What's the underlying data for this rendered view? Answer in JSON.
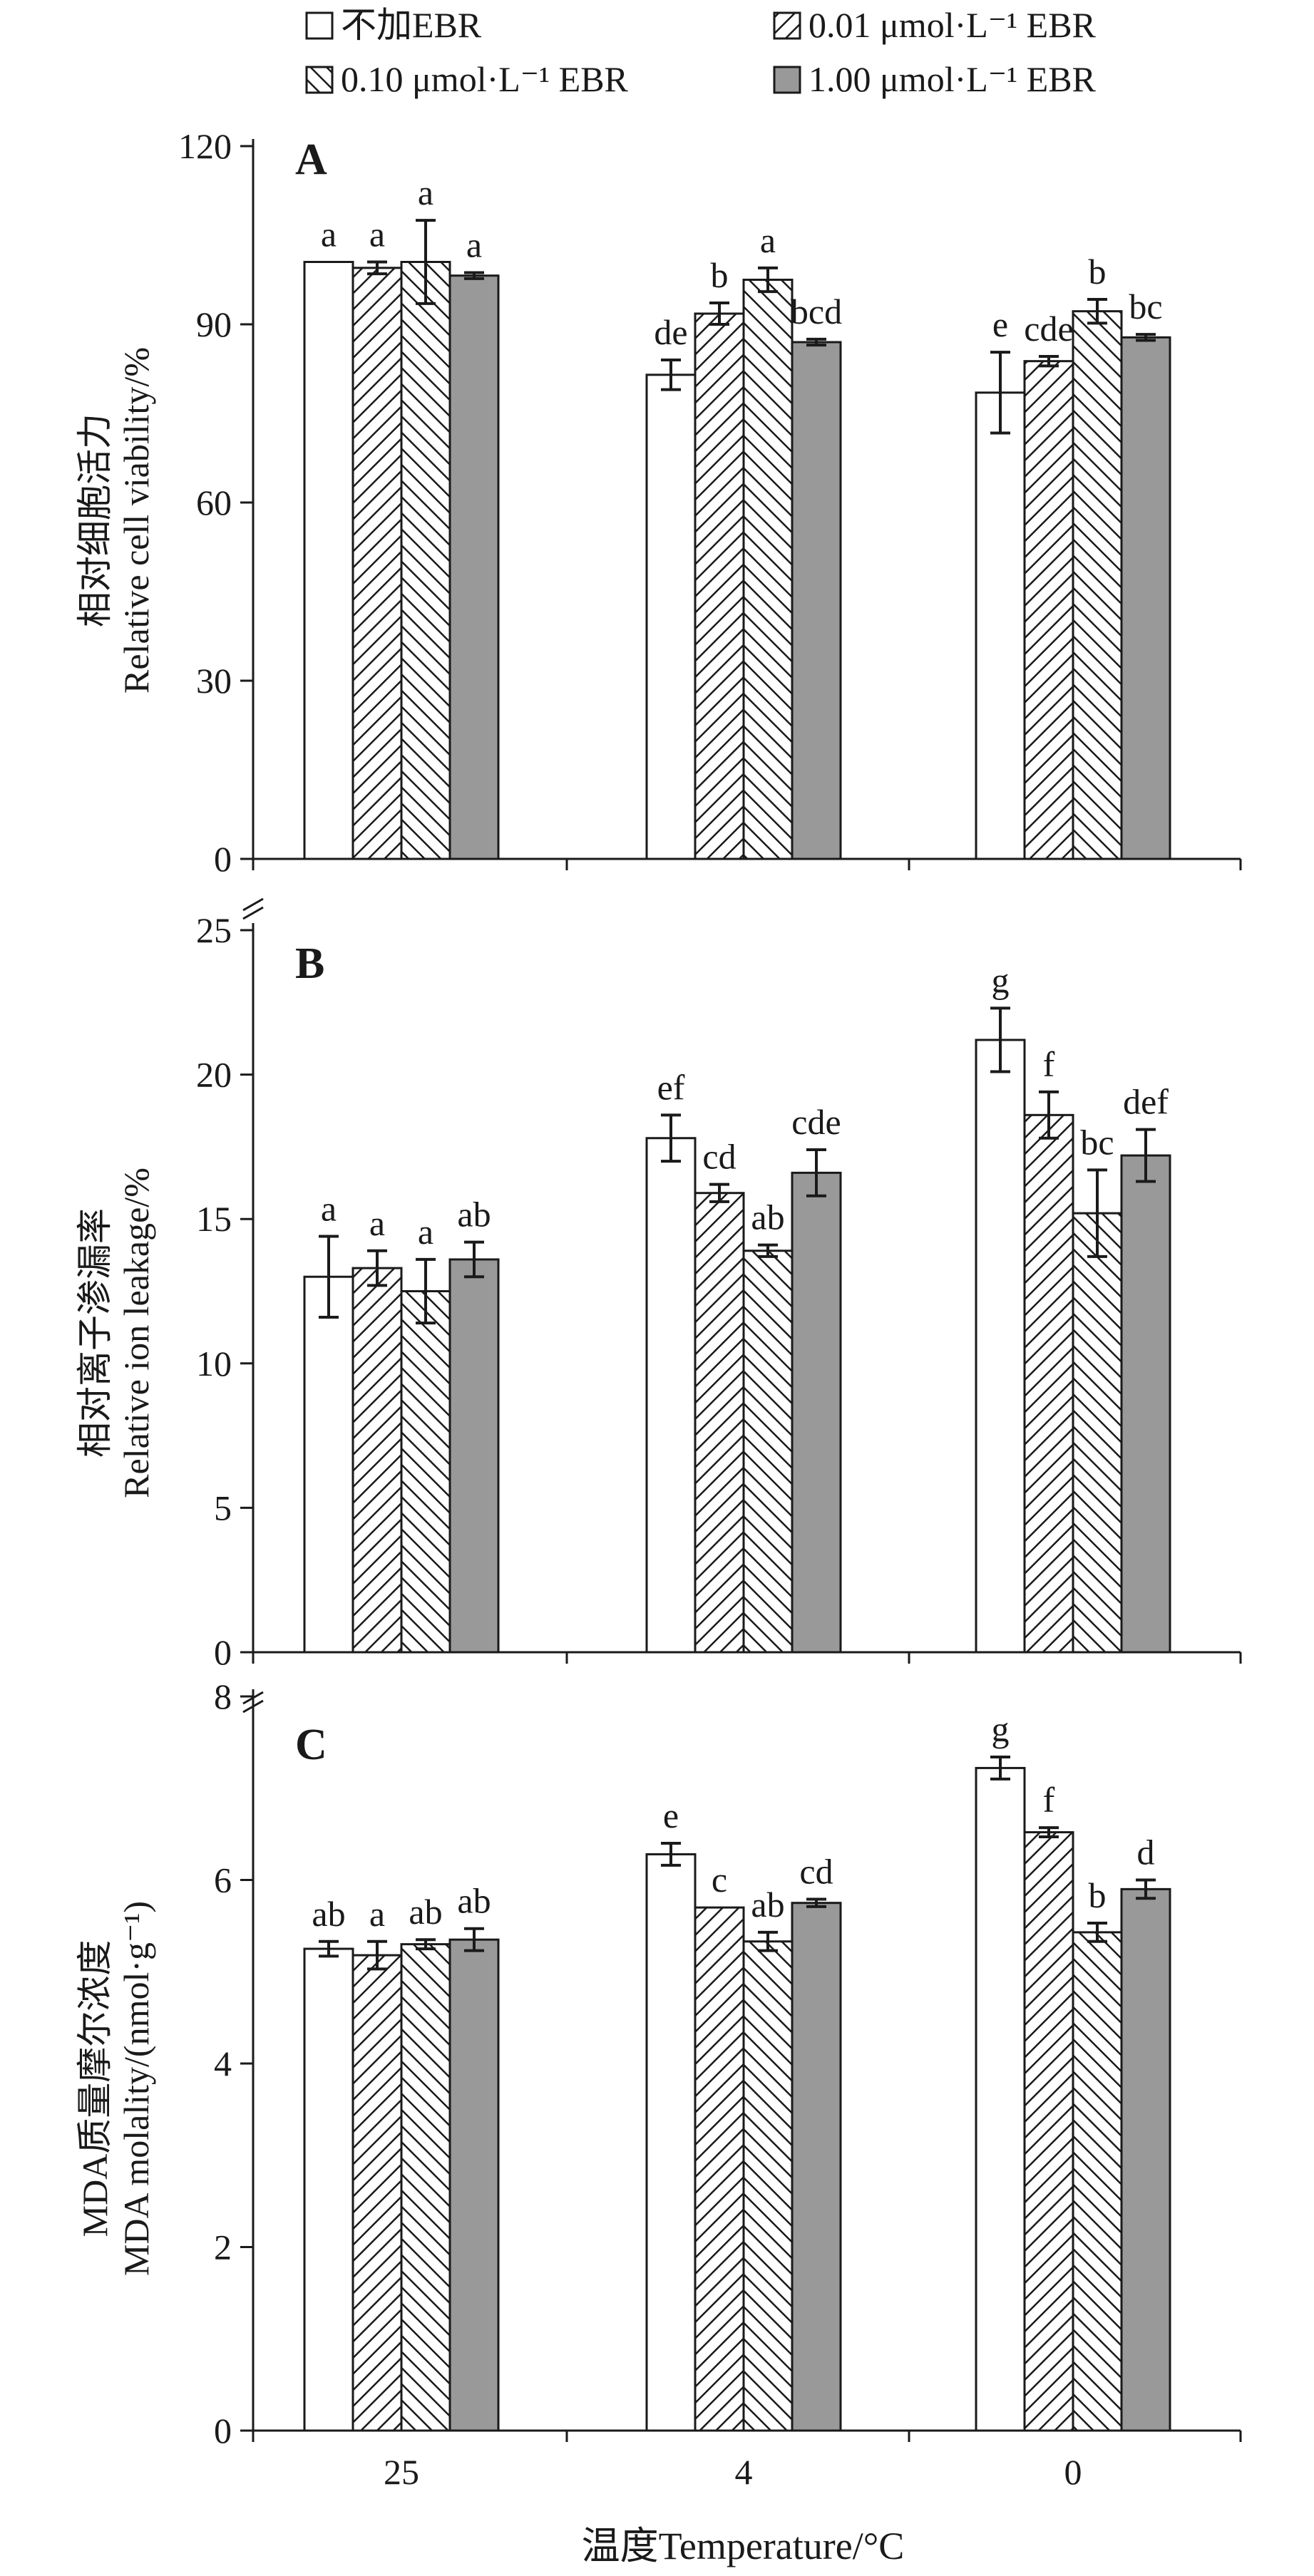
{
  "chart_data": {
    "type": "bar",
    "xlabel": "温度Temperature/°C",
    "categories": [
      "25",
      "4",
      "0"
    ],
    "series": [
      {
        "name": "不加EBR",
        "fill": "#ffffff",
        "pattern": "none"
      },
      {
        "name": "0.01 μmol·L⁻¹ EBR",
        "fill": "#ffffff",
        "pattern": "hatch-right"
      },
      {
        "name": "0.10 μmol·L⁻¹ EBR",
        "fill": "#ffffff",
        "pattern": "hatch-left"
      },
      {
        "name": "1.00 μmol·L⁻¹ EBR",
        "fill": "#999999",
        "pattern": "none"
      }
    ],
    "panels": [
      {
        "letter": "A",
        "ylabel_cn": "相对细胞活力",
        "ylabel_en": "Relative cell viability/%",
        "ylim": [
          0,
          120
        ],
        "yticks": [
          0,
          30,
          60,
          90,
          120
        ],
        "values": [
          [
            100.5,
            99.5,
            100.5,
            98.2
          ],
          [
            81.5,
            91.8,
            97.5,
            87.0
          ],
          [
            78.5,
            83.8,
            92.2,
            87.8
          ]
        ],
        "errors": [
          [
            0,
            1.0,
            7.0,
            0.5
          ],
          [
            2.5,
            1.8,
            2.0,
            0.5
          ],
          [
            6.8,
            0.8,
            2.0,
            0.5
          ]
        ],
        "letters": [
          [
            "a",
            "a",
            "a",
            "a"
          ],
          [
            "de",
            "b",
            "a",
            "bcd"
          ],
          [
            "e",
            "cde",
            "b",
            "bc"
          ]
        ]
      },
      {
        "letter": "B",
        "ylabel_cn": "相对离子渗漏率",
        "ylabel_en": "Relative ion leakage/%",
        "ylim": [
          0,
          25
        ],
        "yticks": [
          0,
          5,
          10,
          15,
          20,
          25
        ],
        "values": [
          [
            13.0,
            13.3,
            12.5,
            13.6
          ],
          [
            17.8,
            15.9,
            13.9,
            16.6
          ],
          [
            21.2,
            18.6,
            15.2,
            17.2
          ]
        ],
        "errors": [
          [
            1.4,
            0.6,
            1.1,
            0.6
          ],
          [
            0.8,
            0.3,
            0.2,
            0.8
          ],
          [
            1.1,
            0.8,
            1.5,
            0.9
          ]
        ],
        "letters": [
          [
            "a",
            "a",
            "a",
            "ab"
          ],
          [
            "ef",
            "cd",
            "ab",
            "cde"
          ],
          [
            "g",
            "f",
            "bc",
            "def"
          ]
        ]
      },
      {
        "letter": "C",
        "ylabel_cn": "MDA质量摩尔浓度",
        "ylabel_en": "MDA molality/(nmol·g⁻¹)",
        "ylim": [
          0,
          8
        ],
        "yticks": [
          0,
          2,
          4,
          6,
          8
        ],
        "values": [
          [
            5.25,
            5.18,
            5.3,
            5.35
          ],
          [
            6.28,
            5.7,
            5.33,
            5.75
          ],
          [
            7.22,
            6.52,
            5.43,
            5.9
          ]
        ],
        "errors": [
          [
            0.08,
            0.15,
            0.05,
            0.12
          ],
          [
            0.12,
            0,
            0.1,
            0.04
          ],
          [
            0.12,
            0.05,
            0.1,
            0.1
          ]
        ],
        "letters": [
          [
            "ab",
            "a",
            "ab",
            "ab"
          ],
          [
            "e",
            "c",
            "ab",
            "cd"
          ],
          [
            "g",
            "f",
            "b",
            "d"
          ]
        ]
      }
    ]
  }
}
